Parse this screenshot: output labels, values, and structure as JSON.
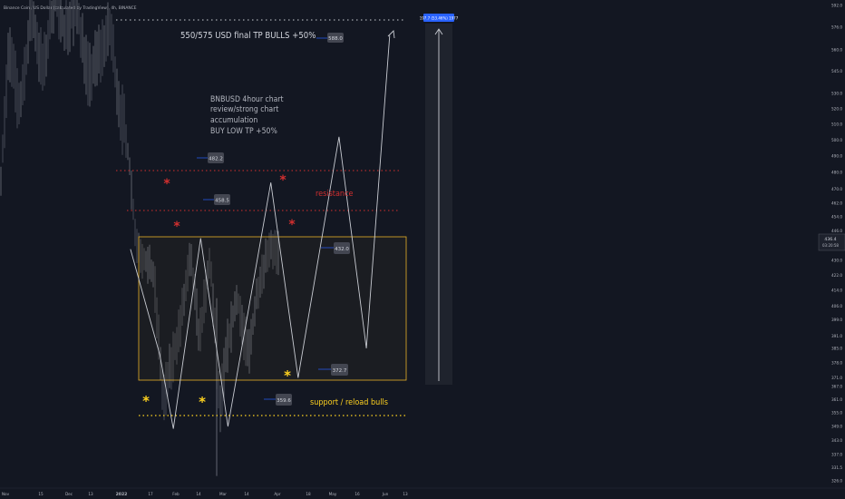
{
  "header": {
    "symbol_text": "Binance Coin / US Dollar (calculated by TradingView), 4h, BINANCE"
  },
  "chart_data": {
    "type": "line",
    "y_axis": {
      "scale": "log",
      "ticks": [
        "592.0",
        "576.0",
        "560.0",
        "545.0",
        "530.0",
        "520.0",
        "510.0",
        "500.0",
        "490.0",
        "480.0",
        "470.0",
        "462.0",
        "454.0",
        "446.0",
        "438.0",
        "430.0",
        "422.0",
        "414.0",
        "406.0",
        "399.0",
        "391.0",
        "385.0",
        "378.0",
        "371.0",
        "367.0",
        "361.0",
        "355.0",
        "349.0",
        "343.0",
        "337.0",
        "331.5",
        "326.0"
      ]
    },
    "price_tag": {
      "value": "436.4",
      "countdown": "03:20:58"
    },
    "x_axis": {
      "ticks": [
        "Nov",
        "15",
        "Dec",
        "13",
        "2022",
        "17",
        "Feb",
        "14",
        "Mar",
        "14",
        "Apr",
        "18",
        "May",
        "16",
        "Jun",
        "13"
      ]
    },
    "projection_path": [
      {
        "date": "Jan 06",
        "price": 436
      },
      {
        "date": "Jan 21",
        "price": 382
      },
      {
        "date": "Jan 28",
        "price": 348
      },
      {
        "date": "Feb 11",
        "price": 442
      },
      {
        "date": "Feb 25",
        "price": 349
      },
      {
        "date": "Mar 19",
        "price": 474
      },
      {
        "date": "Apr 02",
        "price": 371
      },
      {
        "date": "Apr 23",
        "price": 502
      },
      {
        "date": "May 07",
        "price": 385
      },
      {
        "date": "May 19",
        "price": 570
      }
    ],
    "levels": [
      {
        "label": "482.2",
        "style": "red-dotted"
      },
      {
        "label": "458.5",
        "style": "red-dotted"
      },
      {
        "label": "432.0",
        "style": "range-top"
      },
      {
        "label": "372.7",
        "style": "range-bottom"
      },
      {
        "label": "359.6",
        "style": "yellow-dotted"
      },
      {
        "label": "588.0",
        "style": "white-dotted"
      }
    ],
    "annotations": {
      "title_lines": [
        "BNBUSD 4hour chart",
        "review/strong chart",
        "accumulation",
        "BUY LOW TP +50%"
      ],
      "tp_text": "550/575 USD final TP BULLS +50%",
      "resistance_text": "resistance",
      "support_text": "support / reload bulls",
      "long_label": "197.7 (53.46%) 1977"
    },
    "colors": {
      "resistance": "#d32f2f",
      "support": "#ffd21f",
      "range": "#e8b12a",
      "path": "#c9ccd3",
      "axis_text": "#b2b5be",
      "pricetag": "#131722",
      "long_label": "#2962ff"
    }
  }
}
